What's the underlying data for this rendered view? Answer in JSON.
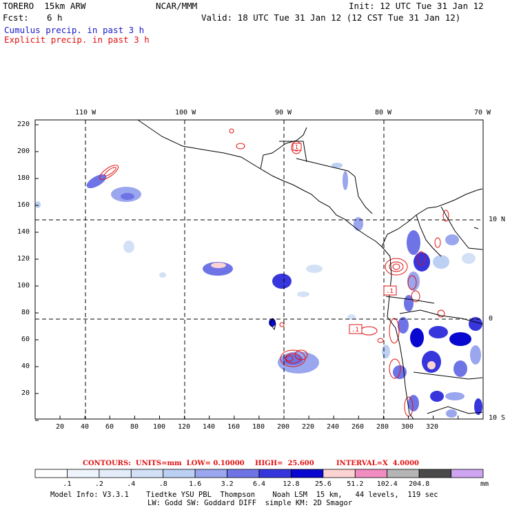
{
  "header": {
    "model": "TORERO  15km ARW",
    "org": "NCAR/MMM",
    "init": "Init: 12 UTC Tue 31 Jan 12",
    "fcst_label": "Fcst:",
    "fcst_value": "6 h",
    "valid": "Valid: 18 UTC Tue 31 Jan 12 (12 CST Tue 31 Jan 12)",
    "line_blue": "Cumulus precip. in past 3 h",
    "line_red": "Explicit precip. in past 3 h"
  },
  "map": {
    "lon_labels": [
      "110 W",
      "100 W",
      "90 W",
      "80 W",
      "70 W"
    ],
    "lat_labels": [
      "10 N",
      "0",
      "10 S"
    ],
    "y_ticks": [
      "220",
      "200",
      "180",
      "160",
      "140",
      "120",
      "100",
      "80",
      "60",
      "40",
      "20"
    ],
    "x_ticks": [
      "20",
      "40",
      "60",
      "80",
      "100",
      "120",
      "140",
      "160",
      "180",
      "200",
      "220",
      "240",
      "260",
      "280",
      "300",
      "320"
    ],
    "contour_box_labels": [
      "1",
      ".1",
      ".1"
    ]
  },
  "contour_info": {
    "units": "CONTOURS:  UNITS=mm  LOW= 0.10000",
    "high": "HIGH=  25.600",
    "interval": "INTERVAL=X  4.0000"
  },
  "colorbar": {
    "labels": [
      ".1",
      ".2",
      ".4",
      ".8",
      "1.6",
      "3.2",
      "6.4",
      "12.8",
      "25.6",
      "51.2",
      "102.4",
      "204.8"
    ],
    "unit": "mm",
    "colors": [
      "#ffffff",
      "#eef4fb",
      "#e4ecfa",
      "#d3e1f7",
      "#bcd0f3",
      "#9aa6ee",
      "#6e74e6",
      "#3636dc",
      "#0808d0",
      "#fbd3d3",
      "#f08cbf",
      "#b5b5b5",
      "#4a4a4a",
      "#cfa5f2"
    ]
  },
  "footer": {
    "line1": "Model Info: V3.3.1    Tiedtke YSU PBL  Thompson    Noah LSM  15 km,   44 levels,  119 sec",
    "line2": "LW: Godd SW: Goddard DIFF  simple KM: 2D Smagor"
  }
}
